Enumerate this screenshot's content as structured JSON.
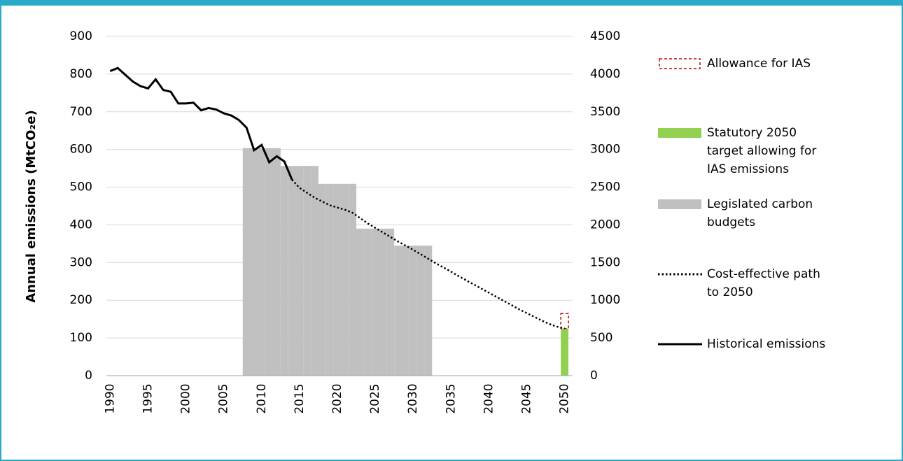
{
  "chart_data": {
    "type": "combo",
    "y_label": "Annual emissions (MtCO₂e)",
    "categories": [
      "1990",
      null,
      null,
      null,
      null,
      "1995",
      null,
      null,
      null,
      null,
      "2000",
      null,
      null,
      null,
      null,
      "2005",
      null,
      null,
      null,
      null,
      "2010",
      null,
      null,
      null,
      null,
      "2015",
      null,
      null,
      null,
      null,
      "2020",
      null,
      null,
      null,
      null,
      "2025",
      null,
      null,
      null,
      null,
      "2030",
      null,
      null,
      null,
      null,
      "2035",
      null,
      null,
      null,
      null,
      "2040",
      null,
      null,
      null,
      null,
      "2045",
      null,
      null,
      null,
      null,
      "2050"
    ],
    "ylim": [
      0,
      900
    ],
    "yticks": [
      0,
      100,
      200,
      300,
      400,
      500,
      600,
      700,
      800,
      900
    ],
    "y2lim": [
      0,
      4500
    ],
    "y2ticks": [
      0,
      500,
      1000,
      1500,
      2000,
      2500,
      3000,
      3500,
      4000,
      4500
    ],
    "grid": true,
    "legend": "right",
    "series": [
      {
        "name": "Allowance for IAS",
        "type": "bar",
        "stack": true,
        "style": "dashed",
        "color": "#c00000",
        "values": [
          null,
          null,
          null,
          null,
          null,
          null,
          null,
          null,
          null,
          null,
          null,
          null,
          null,
          null,
          null,
          null,
          null,
          null,
          null,
          null,
          null,
          null,
          null,
          null,
          null,
          null,
          null,
          null,
          null,
          null,
          null,
          null,
          null,
          null,
          null,
          null,
          null,
          null,
          null,
          null,
          null,
          null,
          null,
          null,
          null,
          null,
          null,
          null,
          null,
          null,
          null,
          null,
          null,
          null,
          null,
          null,
          null,
          null,
          null,
          null,
          40
        ]
      },
      {
        "name": "Statutory 2050 target allowing for IAS emissions",
        "type": "bar",
        "stack": true,
        "color": "#92d050",
        "values": [
          null,
          null,
          null,
          null,
          null,
          null,
          null,
          null,
          null,
          null,
          null,
          null,
          null,
          null,
          null,
          null,
          null,
          null,
          null,
          null,
          null,
          null,
          null,
          null,
          null,
          null,
          null,
          null,
          null,
          null,
          null,
          null,
          null,
          null,
          null,
          null,
          null,
          null,
          null,
          null,
          null,
          null,
          null,
          null,
          null,
          null,
          null,
          null,
          null,
          null,
          null,
          null,
          null,
          null,
          null,
          null,
          null,
          null,
          null,
          null,
          125
        ]
      },
      {
        "name": "Legislated carbon budgets",
        "type": "bar",
        "axis": "y2",
        "color": "#c0c0c0",
        "values": [
          null,
          null,
          null,
          null,
          null,
          null,
          null,
          null,
          null,
          null,
          null,
          null,
          null,
          null,
          null,
          null,
          null,
          null,
          3018,
          3018,
          3018,
          3018,
          3018,
          2782,
          2782,
          2782,
          2782,
          2782,
          2544,
          2544,
          2544,
          2544,
          2544,
          1950,
          1950,
          1950,
          1950,
          1950,
          1725,
          1725,
          1725,
          1725,
          1725,
          null,
          null,
          null,
          null,
          null,
          null,
          null,
          null,
          null,
          null,
          null,
          null,
          null,
          null,
          null,
          null,
          null,
          null
        ]
      },
      {
        "name": "Cost-effective path to 2050",
        "type": "line",
        "style": "dotted",
        "color": "#000000",
        "values": [
          null,
          null,
          null,
          null,
          null,
          null,
          null,
          null,
          null,
          null,
          null,
          null,
          null,
          null,
          null,
          null,
          null,
          null,
          null,
          null,
          null,
          null,
          null,
          null,
          520,
          498,
          485,
          472,
          462,
          452,
          446,
          440,
          432,
          418,
          404,
          392,
          380,
          368,
          356,
          345,
          334,
          322,
          310,
          298,
          287,
          276,
          264,
          253,
          242,
          231,
          220,
          209,
          198,
          187,
          176,
          166,
          156,
          146,
          137,
          130,
          125
        ]
      },
      {
        "name": "Historical emissions",
        "type": "line",
        "color": "#000000",
        "values": [
          808,
          816,
          798,
          780,
          768,
          762,
          786,
          758,
          753,
          722,
          722,
          724,
          704,
          710,
          706,
          696,
          690,
          678,
          658,
          598,
          612,
          566,
          582,
          568,
          520,
          null,
          null,
          null,
          null,
          null,
          null,
          null,
          null,
          null,
          null,
          null,
          null,
          null,
          null,
          null,
          null,
          null,
          null,
          null,
          null,
          null,
          null,
          null,
          null,
          null,
          null,
          null,
          null,
          null,
          null,
          null,
          null,
          null,
          null,
          null,
          null
        ]
      }
    ]
  }
}
